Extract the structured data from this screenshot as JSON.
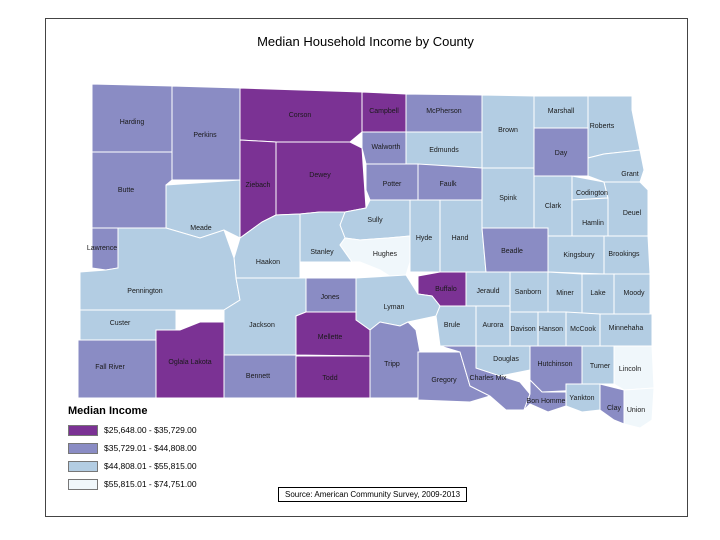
{
  "title": "Median Household Income by County",
  "legend": {
    "title": "Median Income",
    "items": [
      {
        "label": "$25,648.00 - $35,729.00",
        "color": "#7b3294"
      },
      {
        "label": "$35,729.01 - $44,808.00",
        "color": "#8a8cc4"
      },
      {
        "label": "$44,808.01 - $55,815.00",
        "color": "#b3cde3"
      },
      {
        "label": "$55,815.01 - $74,751.00",
        "color": "#f0f7fb"
      }
    ]
  },
  "source": "Source:  American Community Survey, 2009-2013",
  "counties": [
    {
      "name": "Harding",
      "class": 1
    },
    {
      "name": "Perkins",
      "class": 1
    },
    {
      "name": "Corson",
      "class": 0
    },
    {
      "name": "Campbell",
      "class": 0
    },
    {
      "name": "McPherson",
      "class": 1
    },
    {
      "name": "Brown",
      "class": 2
    },
    {
      "name": "Marshall",
      "class": 2
    },
    {
      "name": "Roberts",
      "class": 2
    },
    {
      "name": "Butte",
      "class": 1
    },
    {
      "name": "Ziebach",
      "class": 0
    },
    {
      "name": "Dewey",
      "class": 0
    },
    {
      "name": "Walworth",
      "class": 1
    },
    {
      "name": "Edmunds",
      "class": 2
    },
    {
      "name": "Day",
      "class": 1
    },
    {
      "name": "Grant",
      "class": 2
    },
    {
      "name": "Codington",
      "class": 2
    },
    {
      "name": "Potter",
      "class": 1
    },
    {
      "name": "Faulk",
      "class": 1
    },
    {
      "name": "Spink",
      "class": 2
    },
    {
      "name": "Clark",
      "class": 2
    },
    {
      "name": "Hamlin",
      "class": 2
    },
    {
      "name": "Deuel",
      "class": 2
    },
    {
      "name": "Meade",
      "class": 2
    },
    {
      "name": "Sully",
      "class": 2
    },
    {
      "name": "Hyde",
      "class": 2
    },
    {
      "name": "Hand",
      "class": 2
    },
    {
      "name": "Beadle",
      "class": 1
    },
    {
      "name": "Kingsbury",
      "class": 2
    },
    {
      "name": "Brookings",
      "class": 2
    },
    {
      "name": "Lawrence",
      "class": 1
    },
    {
      "name": "Stanley",
      "class": 2
    },
    {
      "name": "Hughes",
      "class": 3
    },
    {
      "name": "Haakon",
      "class": 2
    },
    {
      "name": "Pennington",
      "class": 2
    },
    {
      "name": "Buffalo",
      "class": 0
    },
    {
      "name": "Jerauld",
      "class": 2
    },
    {
      "name": "Sanborn",
      "class": 2
    },
    {
      "name": "Miner",
      "class": 2
    },
    {
      "name": "Lake",
      "class": 2
    },
    {
      "name": "Moody",
      "class": 2
    },
    {
      "name": "Jones",
      "class": 1
    },
    {
      "name": "Lyman",
      "class": 2
    },
    {
      "name": "Custer",
      "class": 2
    },
    {
      "name": "Jackson",
      "class": 2
    },
    {
      "name": "Brule",
      "class": 2
    },
    {
      "name": "Aurora",
      "class": 2
    },
    {
      "name": "Davison",
      "class": 2
    },
    {
      "name": "Hanson",
      "class": 2
    },
    {
      "name": "McCook",
      "class": 2
    },
    {
      "name": "Minnehaha",
      "class": 2
    },
    {
      "name": "Mellette",
      "class": 0
    },
    {
      "name": "Fall River",
      "class": 1
    },
    {
      "name": "Oglala Lakota",
      "class": 0
    },
    {
      "name": "Bennett",
      "class": 1
    },
    {
      "name": "Todd",
      "class": 0
    },
    {
      "name": "Tripp",
      "class": 1
    },
    {
      "name": "Gregory",
      "class": 1
    },
    {
      "name": "Charles Mix",
      "class": 1
    },
    {
      "name": "Douglas",
      "class": 2
    },
    {
      "name": "Hutchinson",
      "class": 1
    },
    {
      "name": "Turner",
      "class": 2
    },
    {
      "name": "Lincoln",
      "class": 3
    },
    {
      "name": "Bon Homme",
      "class": 1
    },
    {
      "name": "Yankton",
      "class": 2
    },
    {
      "name": "Clay",
      "class": 1
    },
    {
      "name": "Union",
      "class": 3
    }
  ]
}
